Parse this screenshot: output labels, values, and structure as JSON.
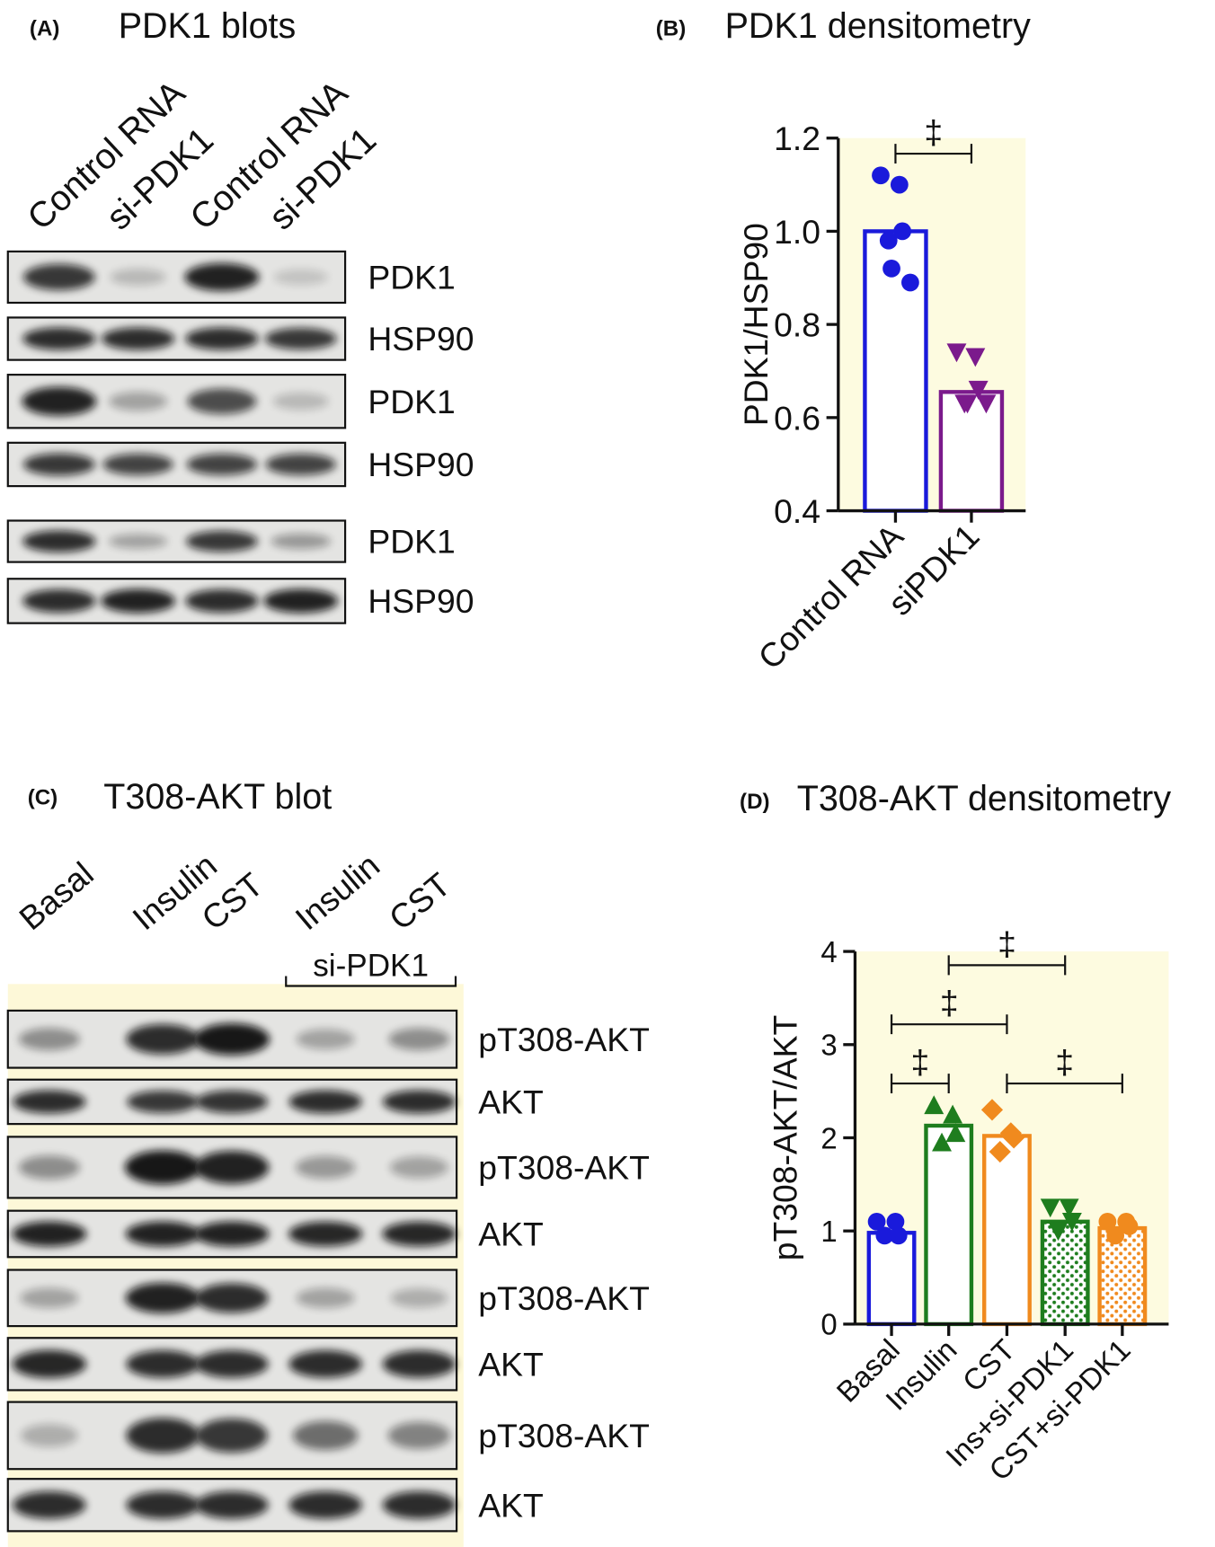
{
  "panels": [
    {
      "letter": "(A)",
      "title": "PDK1 blots"
    },
    {
      "letter": "(B)",
      "title": "PDK1 densitometry"
    },
    {
      "letter": "(C)",
      "title": "T308-AKT blot"
    },
    {
      "letter": "(D)",
      "title": "T308-AKT densitometry"
    }
  ],
  "blots": [
    {
      "lanes": [
        "Control RNA",
        "si-PDK1",
        "Control RNA",
        "si-PDK1"
      ],
      "rows": [
        "PDK1",
        "HSP90",
        "PDK1",
        "HSP90",
        "PDK1",
        "HSP90"
      ]
    },
    {
      "lanes": [
        "Basal",
        "Insulin",
        "CST",
        "Insulin",
        "CST"
      ],
      "group_label": "si-PDK1",
      "rows": [
        "pT308-AKT",
        "AKT",
        "pT308-AKT",
        "AKT",
        "pT308-AKT",
        "AKT",
        "pT308-AKT",
        "AKT"
      ]
    }
  ],
  "chart_data": [
    {
      "type": "bar",
      "y_label": "PDK1/HSP90",
      "categories": [
        "Control RNA",
        "siPDK1"
      ],
      "values": [
        1.0,
        0.655
      ],
      "colors": [
        "#1a1adb",
        "#7b1a8c"
      ],
      "markers": [
        "circle",
        "triangle-down"
      ],
      "fill_patterns": [
        "none",
        "none"
      ],
      "points": [
        [
          1.12,
          1.1,
          1.0,
          0.98,
          0.92,
          0.89
        ],
        [
          0.74,
          0.73,
          0.66,
          0.63,
          0.63,
          0.63
        ]
      ],
      "ylim": [
        0.4,
        1.2
      ],
      "yticks": [
        0.4,
        0.6,
        0.8,
        {
          "value": 1,
          "label": "1.0"
        },
        1.2
      ],
      "background": "#fdfbe0",
      "significance": [
        {
          "symbol": "‡",
          "between": [
            0,
            1
          ]
        }
      ]
    },
    {
      "type": "bar",
      "y_label": "pT308-AKT/AKT",
      "categories": [
        "Basal",
        "Insulin",
        "CST",
        "Ins+si-PDK1",
        "CST+si-PDK1"
      ],
      "values": [
        0.98,
        2.13,
        2.02,
        1.1,
        1.03
      ],
      "colors": [
        "#1a1adb",
        "#1e7d1e",
        "#f08a1e",
        "#1e7d1e",
        "#f08a1e"
      ],
      "markers": [
        "circle",
        "triangle-up",
        "diamond",
        "triangle-down",
        "circle"
      ],
      "fill_patterns": [
        "none",
        "none",
        "none",
        "dots",
        "dots"
      ],
      "points": [
        [
          1.1,
          1.1,
          0.95,
          0.95
        ],
        [
          2.35,
          2.25,
          2.05,
          1.95
        ],
        [
          2.3,
          2.05,
          2.0,
          1.85
        ],
        [
          1.25,
          1.25,
          1.1,
          1.0
        ],
        [
          1.1,
          1.1,
          1.05,
          0.95
        ]
      ],
      "ylim": [
        0,
        4
      ],
      "yticks": [
        0,
        1,
        2,
        3,
        4
      ],
      "background": "#fdfbe0",
      "significance": [
        {
          "symbol": "‡",
          "between": [
            0,
            1
          ]
        },
        {
          "symbol": "‡",
          "between": [
            2,
            4
          ]
        },
        {
          "symbol": "‡",
          "between": [
            0,
            2
          ]
        },
        {
          "symbol": "‡",
          "between": [
            1,
            3
          ]
        }
      ]
    }
  ]
}
